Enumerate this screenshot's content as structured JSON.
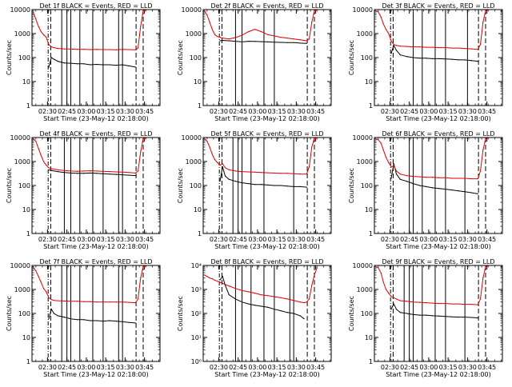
{
  "common": {
    "xlabel": "Start Time (23-May-12 02:18:00)",
    "ylabel": "Counts/sec",
    "xticks": [
      "02:30",
      "02:45",
      "03:00",
      "03:15",
      "03:30",
      "03:45"
    ],
    "xtick_minutes": [
      12,
      27,
      42,
      57,
      72,
      87
    ],
    "xlim_minutes": [
      0,
      99
    ],
    "ylim": [
      1,
      10000
    ],
    "y_scale": "log",
    "yticks_plain": [
      "1",
      "10",
      "100",
      "1000",
      "10000"
    ],
    "yticks_exp": [
      "10⁰",
      "10¹",
      "10²",
      "10³",
      "10⁴"
    ],
    "colors": {
      "events": "#000000",
      "lld": "#dd0000"
    },
    "series_names": [
      "BLACK = Events",
      "RED = LLD"
    ]
  },
  "chart_data": [
    {
      "type": "line",
      "title": "Det 1f  BLACK = Events, RED = LLD",
      "tick_style": "plain",
      "solid_lines": [
        23,
        27,
        30,
        37,
        47,
        55,
        67,
        70
      ],
      "dashed_lines": [
        14.5,
        80.5,
        86
      ],
      "dashdot_lines": [
        12.5
      ],
      "x": [
        1,
        3,
        5,
        7,
        9,
        11,
        13,
        15,
        17,
        20,
        25,
        30,
        35,
        40,
        45,
        50,
        55,
        60,
        65,
        70,
        75,
        80,
        82,
        84,
        86,
        88
      ],
      "series": [
        {
          "name": "BLACK = Events",
          "values": [
            null,
            null,
            null,
            null,
            null,
            null,
            40,
            100,
            85,
            70,
            60,
            58,
            55,
            55,
            50,
            52,
            50,
            50,
            48,
            50,
            45,
            40,
            null,
            null,
            null,
            null
          ]
        },
        {
          "name": "RED = LLD",
          "values": [
            7500,
            4000,
            2000,
            1200,
            900,
            700,
            350,
            280,
            260,
            240,
            230,
            225,
            220,
            220,
            215,
            220,
            215,
            215,
            210,
            220,
            215,
            210,
            250,
            2000,
            9000,
            9500
          ]
        }
      ]
    },
    {
      "type": "line",
      "title": "Det 2f  BLACK = Events, RED = LLD",
      "tick_style": "plain",
      "solid_lines": [
        25,
        30,
        47,
        55
      ],
      "dashed_lines": [
        14.5,
        80.5,
        86
      ],
      "dashdot_lines": [
        12.5
      ],
      "x": [
        1,
        3,
        5,
        7,
        9,
        11,
        13,
        15,
        20,
        25,
        30,
        35,
        40,
        45,
        50,
        55,
        60,
        65,
        70,
        75,
        80,
        82,
        84,
        86,
        88
      ],
      "series": [
        {
          "name": "BLACK = Events",
          "values": [
            null,
            null,
            null,
            null,
            null,
            null,
            500,
            520,
            500,
            480,
            450,
            480,
            470,
            460,
            450,
            440,
            430,
            420,
            420,
            400,
            390,
            null,
            null,
            null,
            null
          ]
        },
        {
          "name": "RED = LLD",
          "values": [
            9000,
            6000,
            3000,
            1500,
            900,
            750,
            700,
            650,
            600,
            680,
            850,
            1200,
            1500,
            1200,
            900,
            800,
            700,
            650,
            600,
            550,
            500,
            600,
            3000,
            9000,
            9500
          ]
        }
      ]
    },
    {
      "type": "line",
      "title": "Det 3f  BLACK = Events, RED = LLD",
      "tick_style": "plain",
      "solid_lines": [
        30,
        37,
        47,
        55,
        72
      ],
      "dashed_lines": [
        14.5,
        80.5,
        86
      ],
      "dashdot_lines": [
        12.5
      ],
      "x": [
        1,
        3,
        5,
        7,
        9,
        11,
        13,
        15,
        17,
        20,
        25,
        30,
        35,
        40,
        45,
        50,
        55,
        60,
        65,
        70,
        75,
        80,
        82,
        84,
        86,
        88
      ],
      "series": [
        {
          "name": "BLACK = Events",
          "values": [
            null,
            null,
            null,
            null,
            null,
            null,
            150,
            320,
            200,
            130,
            110,
            100,
            95,
            95,
            90,
            90,
            88,
            85,
            80,
            80,
            75,
            70,
            null,
            null,
            null,
            null
          ]
        },
        {
          "name": "RED = LLD",
          "values": [
            9000,
            8000,
            5000,
            2500,
            1500,
            1000,
            500,
            350,
            320,
            300,
            290,
            280,
            280,
            270,
            270,
            260,
            260,
            250,
            250,
            240,
            230,
            220,
            350,
            3000,
            9000,
            9500
          ]
        }
      ]
    },
    {
      "type": "line",
      "title": "Det 4f  BLACK = Events, RED = LLD",
      "tick_style": "plain",
      "solid_lines": [
        25,
        30,
        37,
        47,
        55,
        67,
        70
      ],
      "dashed_lines": [
        14.5,
        80.5,
        86
      ],
      "dashdot_lines": [
        12.5
      ],
      "x": [
        1,
        3,
        5,
        7,
        9,
        11,
        13,
        15,
        20,
        25,
        30,
        35,
        40,
        45,
        50,
        55,
        60,
        65,
        70,
        75,
        80,
        82,
        84,
        86,
        88
      ],
      "series": [
        {
          "name": "BLACK = Events",
          "values": [
            null,
            null,
            null,
            null,
            null,
            null,
            450,
            420,
            380,
            350,
            330,
            320,
            320,
            330,
            320,
            310,
            300,
            290,
            280,
            270,
            260,
            null,
            null,
            null,
            null
          ]
        },
        {
          "name": "RED = LLD",
          "values": [
            9000,
            7000,
            3500,
            1800,
            1000,
            700,
            550,
            500,
            450,
            420,
            400,
            390,
            400,
            410,
            400,
            390,
            380,
            370,
            360,
            350,
            330,
            400,
            2500,
            9000,
            9500
          ]
        }
      ]
    },
    {
      "type": "line",
      "title": "Det 5f  BLACK = Events, RED = LLD",
      "tick_style": "plain",
      "solid_lines": [
        23,
        27,
        30,
        37,
        47,
        70
      ],
      "dashed_lines": [
        14.5,
        80.5,
        86
      ],
      "dashdot_lines": [
        12.5
      ],
      "x": [
        1,
        3,
        5,
        7,
        9,
        11,
        13,
        15,
        17,
        20,
        25,
        30,
        35,
        40,
        45,
        50,
        55,
        60,
        65,
        70,
        75,
        80,
        82,
        84,
        86,
        88
      ],
      "series": [
        {
          "name": "BLACK = Events",
          "values": [
            null,
            null,
            null,
            null,
            null,
            null,
            150,
            600,
            250,
            180,
            150,
            130,
            120,
            110,
            110,
            105,
            100,
            100,
            95,
            90,
            90,
            85,
            null,
            null,
            null,
            null
          ]
        },
        {
          "name": "RED = LLD",
          "values": [
            9000,
            7000,
            4000,
            2000,
            1200,
            900,
            700,
            800,
            550,
            450,
            400,
            380,
            370,
            360,
            350,
            340,
            330,
            320,
            320,
            310,
            300,
            300,
            600,
            4000,
            9500,
            9500
          ]
        }
      ]
    },
    {
      "type": "line",
      "title": "Det 6f  BLACK = Events, RED = LLD",
      "tick_style": "plain",
      "solid_lines": [
        27,
        30,
        37,
        47,
        55,
        70
      ],
      "dashed_lines": [
        14.5,
        80.5,
        86
      ],
      "dashdot_lines": [
        12.5
      ],
      "x": [
        1,
        3,
        5,
        7,
        9,
        11,
        13,
        15,
        17,
        20,
        25,
        30,
        35,
        40,
        45,
        50,
        55,
        60,
        65,
        70,
        75,
        80,
        82,
        84,
        86,
        88
      ],
      "series": [
        {
          "name": "BLACK = Events",
          "values": [
            null,
            null,
            null,
            null,
            null,
            null,
            200,
            800,
            300,
            180,
            150,
            120,
            100,
            90,
            80,
            75,
            70,
            65,
            60,
            55,
            50,
            45,
            null,
            null,
            null,
            null
          ]
        },
        {
          "name": "RED = LLD",
          "values": [
            9000,
            8000,
            6000,
            3000,
            1500,
            900,
            600,
            650,
            400,
            300,
            260,
            240,
            230,
            220,
            220,
            210,
            210,
            200,
            200,
            200,
            190,
            190,
            400,
            3000,
            9000,
            9500
          ]
        }
      ]
    },
    {
      "type": "line",
      "title": "Det 7f  BLACK = Events, RED = LLD",
      "tick_style": "plain",
      "solid_lines": [
        23,
        27,
        30,
        37,
        47,
        55,
        67,
        70
      ],
      "dashed_lines": [
        14.5,
        80.5,
        86
      ],
      "dashdot_lines": [
        12.5
      ],
      "x": [
        1,
        3,
        5,
        7,
        9,
        11,
        13,
        15,
        17,
        20,
        25,
        30,
        35,
        40,
        45,
        50,
        55,
        60,
        65,
        70,
        75,
        80,
        82,
        84,
        86,
        88
      ],
      "series": [
        {
          "name": "BLACK = Events",
          "values": [
            null,
            null,
            null,
            null,
            null,
            null,
            60,
            150,
            100,
            80,
            70,
            60,
            55,
            55,
            50,
            50,
            48,
            50,
            48,
            45,
            42,
            40,
            null,
            null,
            null,
            null
          ]
        },
        {
          "name": "RED = LLD",
          "values": [
            8500,
            6000,
            3500,
            2000,
            1100,
            800,
            450,
            380,
            350,
            340,
            330,
            320,
            320,
            310,
            310,
            300,
            300,
            300,
            300,
            300,
            290,
            280,
            400,
            3000,
            9000,
            9500
          ]
        }
      ]
    },
    {
      "type": "line",
      "title": "Det 8f  BLACK = Events, RED = LLD",
      "tick_style": "exp",
      "solid_lines": [
        25,
        30,
        37,
        47,
        55,
        67,
        70
      ],
      "dashed_lines": [
        14.5,
        80.5,
        86
      ],
      "dashdot_lines": [
        12.5
      ],
      "x": [
        1,
        3,
        5,
        7,
        9,
        11,
        13,
        15,
        17,
        20,
        25,
        30,
        35,
        40,
        45,
        50,
        55,
        60,
        65,
        70,
        75,
        78,
        80,
        82,
        84,
        86,
        88
      ],
      "series": [
        {
          "name": "BLACK = Events",
          "values": [
            null,
            null,
            null,
            null,
            null,
            null,
            2500,
            3500,
            1500,
            600,
            400,
            300,
            250,
            220,
            200,
            180,
            150,
            130,
            110,
            100,
            80,
            60,
            null,
            null,
            null,
            null,
            null
          ]
        },
        {
          "name": "RED = LLD",
          "values": [
            4000,
            3500,
            3000,
            2800,
            2400,
            2200,
            2000,
            1800,
            1600,
            1400,
            1100,
            900,
            800,
            700,
            600,
            550,
            500,
            450,
            400,
            350,
            300,
            280,
            300,
            400,
            1500,
            4000,
            8000
          ]
        }
      ]
    },
    {
      "type": "line",
      "title": "Det 9f  BLACK = Events, RED = LLD",
      "tick_style": "plain",
      "solid_lines": [
        23,
        27,
        30,
        37,
        47,
        55,
        70
      ],
      "dashed_lines": [
        14.5,
        80.5,
        86
      ],
      "dashdot_lines": [
        12.5
      ],
      "x": [
        1,
        3,
        5,
        7,
        9,
        11,
        13,
        15,
        17,
        20,
        25,
        30,
        35,
        40,
        45,
        50,
        55,
        60,
        65,
        70,
        75,
        80,
        82,
        84,
        86,
        88
      ],
      "series": [
        {
          "name": "BLACK = Events",
          "values": [
            null,
            null,
            null,
            null,
            null,
            null,
            150,
            250,
            150,
            110,
            100,
            90,
            85,
            85,
            80,
            78,
            75,
            72,
            70,
            70,
            68,
            65,
            null,
            null,
            null,
            null
          ]
        },
        {
          "name": "RED = LLD",
          "values": [
            9000,
            8000,
            5000,
            2000,
            1000,
            700,
            500,
            450,
            400,
            340,
            320,
            300,
            290,
            280,
            270,
            260,
            260,
            250,
            250,
            240,
            240,
            230,
            400,
            3000,
            9000,
            9500
          ]
        }
      ]
    }
  ]
}
